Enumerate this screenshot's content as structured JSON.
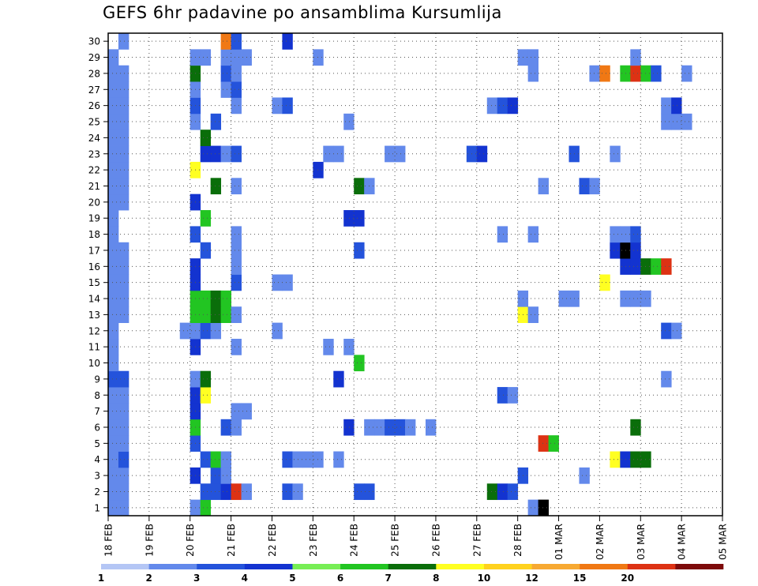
{
  "chart_data": {
    "type": "heatmap",
    "title": "GEFS 6hr padavine po ansamblima Kursumlija",
    "xlabel": "",
    "ylabel": "",
    "x_ticks": [
      "18 FEB",
      "19 FEB",
      "20 FEB",
      "21 FEB",
      "22 FEB",
      "23 FEB",
      "24 FEB",
      "25 FEB",
      "26 FEB",
      "27 FEB",
      "28 FEB",
      "01 MAR",
      "02 MAR",
      "03 MAR",
      "04 MAR",
      "05 MAR"
    ],
    "y_ticks": [
      1,
      2,
      3,
      4,
      5,
      6,
      7,
      8,
      9,
      10,
      11,
      12,
      13,
      14,
      15,
      16,
      17,
      18,
      19,
      20,
      21,
      22,
      23,
      24,
      25,
      26,
      27,
      28,
      29,
      30
    ],
    "xlim_steps": [
      0,
      60
    ],
    "ylim": [
      0.5,
      30.5
    ],
    "time_step_hours": 6,
    "grid": "dotted",
    "colorbar": {
      "placement": "bottom",
      "labels": [
        "1",
        "2",
        "3",
        "4",
        "5",
        "6",
        "7",
        "8",
        "10",
        "12",
        "15",
        "20"
      ],
      "colors": [
        "#b4c6f5",
        "#6389eb",
        "#2453db",
        "#1333d0",
        "#77ee55",
        "#22c522",
        "#0a6e0a",
        "#ffff22",
        "#ffd21e",
        "#f7a932",
        "#f07814",
        "#dd3214",
        "#7d0a0a"
      ]
    },
    "cells": [
      [
        1,
        0,
        1
      ],
      [
        1,
        1,
        1
      ],
      [
        1,
        8,
        1
      ],
      [
        1,
        9,
        5
      ],
      [
        1,
        41,
        1
      ],
      [
        1,
        42,
        13
      ],
      [
        2,
        0,
        1
      ],
      [
        2,
        1,
        1
      ],
      [
        2,
        9,
        2
      ],
      [
        2,
        10,
        2
      ],
      [
        2,
        11,
        3
      ],
      [
        2,
        12,
        11
      ],
      [
        2,
        13,
        1
      ],
      [
        2,
        17,
        2
      ],
      [
        2,
        18,
        1
      ],
      [
        2,
        24,
        2
      ],
      [
        2,
        25,
        2
      ],
      [
        2,
        37,
        6
      ],
      [
        2,
        38,
        3
      ],
      [
        2,
        39,
        2
      ],
      [
        3,
        0,
        1
      ],
      [
        3,
        1,
        1
      ],
      [
        3,
        8,
        3
      ],
      [
        3,
        10,
        2
      ],
      [
        3,
        11,
        1
      ],
      [
        3,
        46,
        1
      ],
      [
        3,
        40,
        2
      ],
      [
        4,
        0,
        1
      ],
      [
        4,
        1,
        2
      ],
      [
        4,
        9,
        2
      ],
      [
        4,
        10,
        5
      ],
      [
        4,
        11,
        1
      ],
      [
        4,
        17,
        2
      ],
      [
        4,
        18,
        1
      ],
      [
        4,
        19,
        1
      ],
      [
        4,
        20,
        1
      ],
      [
        4,
        22,
        1
      ],
      [
        4,
        49,
        7
      ],
      [
        4,
        50,
        3
      ],
      [
        4,
        51,
        6
      ],
      [
        4,
        52,
        6
      ],
      [
        5,
        0,
        1
      ],
      [
        5,
        1,
        1
      ],
      [
        5,
        8,
        2
      ],
      [
        5,
        42,
        11
      ],
      [
        5,
        43,
        5
      ],
      [
        6,
        0,
        1
      ],
      [
        6,
        1,
        1
      ],
      [
        6,
        8,
        5
      ],
      [
        6,
        11,
        2
      ],
      [
        6,
        12,
        1
      ],
      [
        6,
        23,
        3
      ],
      [
        6,
        25,
        1
      ],
      [
        6,
        26,
        1
      ],
      [
        6,
        27,
        2
      ],
      [
        6,
        28,
        2
      ],
      [
        6,
        29,
        1
      ],
      [
        6,
        31,
        1
      ],
      [
        6,
        51,
        6
      ],
      [
        7,
        0,
        1
      ],
      [
        7,
        1,
        1
      ],
      [
        7,
        8,
        3
      ],
      [
        7,
        12,
        1
      ],
      [
        7,
        13,
        1
      ],
      [
        8,
        0,
        1
      ],
      [
        8,
        1,
        1
      ],
      [
        8,
        8,
        3
      ],
      [
        8,
        9,
        7
      ],
      [
        8,
        38,
        2
      ],
      [
        8,
        39,
        1
      ],
      [
        9,
        0,
        2
      ],
      [
        9,
        1,
        2
      ],
      [
        9,
        8,
        1
      ],
      [
        9,
        9,
        6
      ],
      [
        9,
        22,
        3
      ],
      [
        9,
        54,
        1
      ],
      [
        10,
        0,
        1
      ],
      [
        10,
        24,
        5
      ],
      [
        11,
        0,
        1
      ],
      [
        11,
        8,
        3
      ],
      [
        11,
        12,
        1
      ],
      [
        11,
        21,
        1
      ],
      [
        11,
        23,
        1
      ],
      [
        12,
        0,
        1
      ],
      [
        12,
        7,
        1
      ],
      [
        12,
        8,
        1
      ],
      [
        12,
        9,
        2
      ],
      [
        12,
        10,
        1
      ],
      [
        12,
        16,
        1
      ],
      [
        12,
        54,
        2
      ],
      [
        12,
        55,
        1
      ],
      [
        13,
        0,
        1
      ],
      [
        13,
        1,
        1
      ],
      [
        13,
        8,
        5
      ],
      [
        13,
        9,
        5
      ],
      [
        13,
        10,
        6
      ],
      [
        13,
        11,
        5
      ],
      [
        13,
        12,
        1
      ],
      [
        13,
        40,
        7
      ],
      [
        13,
        41,
        1
      ],
      [
        14,
        0,
        1
      ],
      [
        14,
        1,
        1
      ],
      [
        14,
        8,
        5
      ],
      [
        14,
        9,
        5
      ],
      [
        14,
        10,
        6
      ],
      [
        14,
        11,
        5
      ],
      [
        14,
        40,
        1
      ],
      [
        14,
        44,
        1
      ],
      [
        14,
        45,
        1
      ],
      [
        14,
        50,
        1
      ],
      [
        14,
        51,
        1
      ],
      [
        14,
        52,
        1
      ],
      [
        15,
        0,
        1
      ],
      [
        15,
        1,
        1
      ],
      [
        15,
        8,
        3
      ],
      [
        15,
        12,
        2
      ],
      [
        15,
        16,
        1
      ],
      [
        15,
        17,
        1
      ],
      [
        15,
        48,
        7
      ],
      [
        16,
        0,
        1
      ],
      [
        16,
        1,
        1
      ],
      [
        16,
        8,
        3
      ],
      [
        16,
        12,
        1
      ],
      [
        16,
        50,
        3
      ],
      [
        16,
        51,
        3
      ],
      [
        16,
        52,
        6
      ],
      [
        16,
        53,
        5
      ],
      [
        16,
        54,
        11
      ],
      [
        17,
        0,
        1
      ],
      [
        17,
        1,
        1
      ],
      [
        17,
        9,
        2
      ],
      [
        17,
        12,
        1
      ],
      [
        17,
        24,
        2
      ],
      [
        17,
        49,
        3
      ],
      [
        17,
        50,
        13
      ],
      [
        17,
        51,
        3
      ],
      [
        18,
        0,
        1
      ],
      [
        18,
        8,
        2
      ],
      [
        18,
        12,
        1
      ],
      [
        18,
        38,
        1
      ],
      [
        18,
        41,
        1
      ],
      [
        18,
        49,
        1
      ],
      [
        18,
        50,
        1
      ],
      [
        18,
        51,
        2
      ],
      [
        19,
        0,
        1
      ],
      [
        19,
        9,
        5
      ],
      [
        19,
        23,
        3
      ],
      [
        19,
        24,
        3
      ],
      [
        20,
        0,
        1
      ],
      [
        20,
        1,
        1
      ],
      [
        20,
        8,
        3
      ],
      [
        21,
        0,
        1
      ],
      [
        21,
        1,
        1
      ],
      [
        21,
        10,
        6
      ],
      [
        21,
        12,
        1
      ],
      [
        21,
        24,
        6
      ],
      [
        21,
        25,
        1
      ],
      [
        21,
        42,
        1
      ],
      [
        21,
        46,
        2
      ],
      [
        21,
        47,
        1
      ],
      [
        22,
        0,
        1
      ],
      [
        22,
        1,
        1
      ],
      [
        22,
        8,
        7
      ],
      [
        22,
        20,
        3
      ],
      [
        23,
        0,
        1
      ],
      [
        23,
        1,
        1
      ],
      [
        23,
        9,
        3
      ],
      [
        23,
        10,
        3
      ],
      [
        23,
        11,
        1
      ],
      [
        23,
        12,
        2
      ],
      [
        23,
        21,
        1
      ],
      [
        23,
        22,
        1
      ],
      [
        23,
        27,
        1
      ],
      [
        23,
        28,
        1
      ],
      [
        23,
        35,
        2
      ],
      [
        23,
        36,
        3
      ],
      [
        23,
        45,
        2
      ],
      [
        23,
        49,
        1
      ],
      [
        24,
        0,
        1
      ],
      [
        24,
        1,
        1
      ],
      [
        24,
        9,
        6
      ],
      [
        25,
        0,
        1
      ],
      [
        25,
        1,
        1
      ],
      [
        25,
        8,
        1
      ],
      [
        25,
        10,
        2
      ],
      [
        25,
        23,
        1
      ],
      [
        25,
        54,
        1
      ],
      [
        25,
        55,
        1
      ],
      [
        25,
        56,
        1
      ],
      [
        26,
        0,
        1
      ],
      [
        26,
        1,
        1
      ],
      [
        26,
        8,
        2
      ],
      [
        26,
        12,
        1
      ],
      [
        26,
        16,
        1
      ],
      [
        26,
        17,
        2
      ],
      [
        26,
        37,
        1
      ],
      [
        26,
        38,
        2
      ],
      [
        26,
        39,
        3
      ],
      [
        26,
        54,
        1
      ],
      [
        26,
        55,
        3
      ],
      [
        27,
        0,
        1
      ],
      [
        27,
        1,
        1
      ],
      [
        27,
        8,
        1
      ],
      [
        27,
        11,
        1
      ],
      [
        27,
        12,
        2
      ],
      [
        28,
        0,
        1
      ],
      [
        28,
        1,
        1
      ],
      [
        28,
        8,
        6
      ],
      [
        28,
        11,
        2
      ],
      [
        28,
        12,
        1
      ],
      [
        28,
        41,
        1
      ],
      [
        28,
        47,
        1
      ],
      [
        28,
        48,
        10
      ],
      [
        28,
        50,
        5
      ],
      [
        28,
        51,
        11
      ],
      [
        28,
        52,
        5
      ],
      [
        28,
        53,
        2
      ],
      [
        28,
        56,
        1
      ],
      [
        29,
        0,
        1
      ],
      [
        29,
        8,
        1
      ],
      [
        29,
        9,
        1
      ],
      [
        29,
        11,
        1
      ],
      [
        29,
        12,
        1
      ],
      [
        29,
        13,
        1
      ],
      [
        29,
        20,
        1
      ],
      [
        29,
        40,
        1
      ],
      [
        29,
        41,
        1
      ],
      [
        29,
        51,
        1
      ],
      [
        30,
        1,
        1
      ],
      [
        30,
        11,
        10
      ],
      [
        30,
        12,
        2
      ],
      [
        30,
        17,
        3
      ]
    ],
    "cells_format": "[member, step, color_index] where color_index indexes colorbar.colors"
  }
}
